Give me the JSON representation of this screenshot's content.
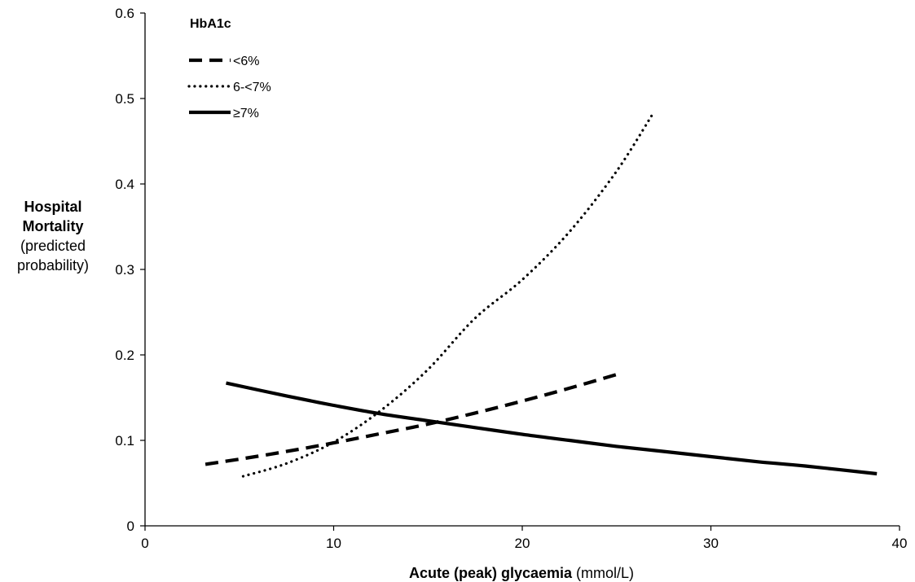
{
  "chart_data": {
    "type": "line",
    "title": "",
    "xlabel": {
      "bold": "Acute (peak) glycaemia",
      "normal": " (mmol/L)"
    },
    "ylabel": {
      "bold": [
        "Hospital",
        "Mortality"
      ],
      "normal": [
        "(predicted",
        "probability)"
      ]
    },
    "xlim": [
      0,
      40
    ],
    "ylim": [
      0,
      0.6
    ],
    "x_ticks": [
      0,
      10,
      20,
      30,
      40
    ],
    "x_tick_labels": [
      "0",
      "10",
      "20",
      "30",
      "40"
    ],
    "y_ticks": [
      0,
      0.1,
      0.2,
      0.3,
      0.4,
      0.5,
      0.6
    ],
    "y_tick_labels": [
      "0",
      "0.1",
      "0.2",
      "0.3",
      "0.4",
      "0.5",
      "0.6"
    ],
    "grid": false,
    "legend": {
      "title": "HbA1c",
      "placement": "top-left"
    },
    "series": [
      {
        "name": "<6%",
        "style": "dashed",
        "color": "#000000",
        "x": [
          3.2,
          5,
          7.5,
          10,
          12.5,
          15,
          17.5,
          20,
          22.5,
          25
        ],
        "y": [
          0.072,
          0.078,
          0.087,
          0.097,
          0.108,
          0.119,
          0.132,
          0.146,
          0.161,
          0.177
        ]
      },
      {
        "name": "6-<7%",
        "style": "dotted",
        "color": "#000000",
        "x": [
          5.2,
          7.5,
          10,
          12.5,
          15,
          17.5,
          20,
          22.5,
          25,
          27
        ],
        "y": [
          0.058,
          0.073,
          0.098,
          0.135,
          0.183,
          0.243,
          0.288,
          0.344,
          0.415,
          0.485
        ]
      },
      {
        "name": "≥7%",
        "style": "solid",
        "color": "#000000",
        "x": [
          4.3,
          7.5,
          10,
          12.5,
          15,
          17.5,
          20,
          22.5,
          25,
          27.5,
          30,
          32.5,
          35,
          38.8
        ],
        "y": [
          0.167,
          0.152,
          0.141,
          0.131,
          0.123,
          0.115,
          0.107,
          0.1,
          0.093,
          0.087,
          0.081,
          0.075,
          0.07,
          0.061
        ]
      }
    ]
  }
}
